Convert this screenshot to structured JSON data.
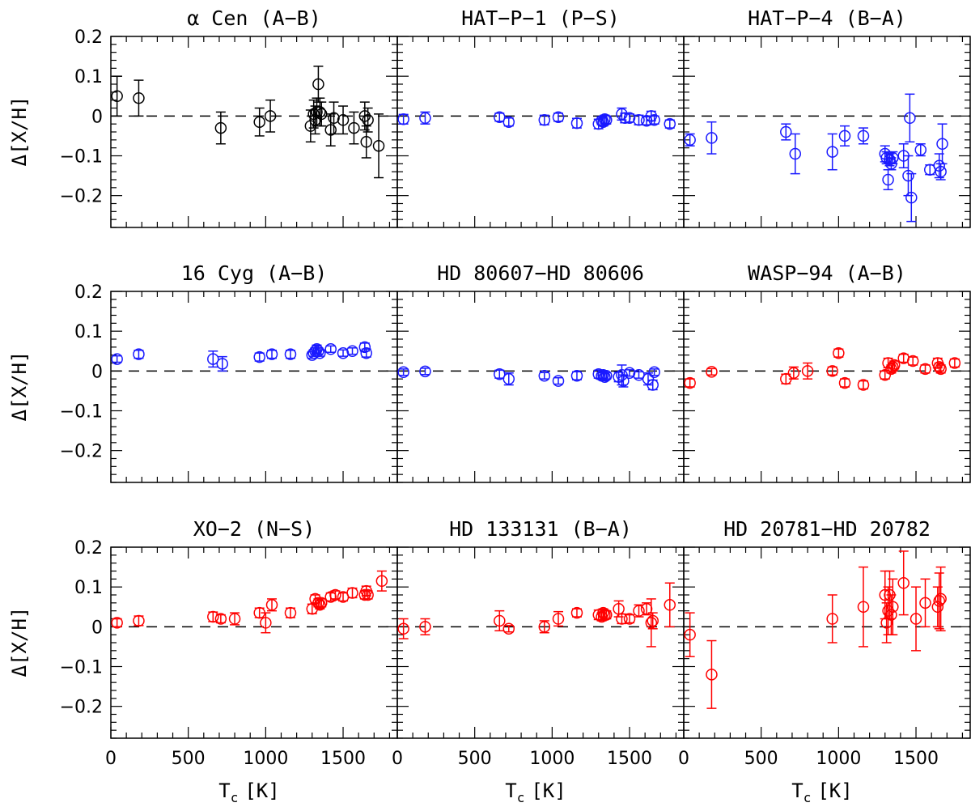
{
  "figure": {
    "ylabel": "Δ[X/H]",
    "xlabel": "T",
    "xlabel_sub": "c",
    "xlabel_unit": "[K]",
    "xlim": [
      0,
      1850
    ],
    "ylim": [
      -0.28,
      0.2
    ],
    "xticks": [
      0,
      500,
      1000,
      1500
    ],
    "xtick_labels": [
      "0",
      "500",
      "1000",
      "1500"
    ],
    "yticks": [
      -0.2,
      -0.1,
      0,
      0.1,
      0.2
    ],
    "ytick_labels": [
      "−0.2",
      "−0.1",
      "0",
      "0.1",
      "0.2"
    ],
    "reference_line_y": 0,
    "colors": {
      "black": "#000000",
      "blue": "#1a1aff",
      "red": "#ff0000"
    }
  },
  "chart_data": [
    {
      "type": "scatter",
      "title": "α Cen (A−B)",
      "color": "#000000",
      "x": [
        40,
        180,
        710,
        960,
        1030,
        1290,
        1310,
        1320,
        1330,
        1340,
        1350,
        1360,
        1420,
        1440,
        1500,
        1570,
        1640,
        1650,
        1660,
        1730
      ],
      "y": [
        0.05,
        0.045,
        -0.03,
        -0.015,
        0,
        -0.025,
        0.005,
        -0.01,
        0.01,
        0.08,
        0.01,
        0.005,
        -0.035,
        -0.005,
        -0.01,
        -0.03,
        0,
        -0.065,
        -0.01,
        -0.075
      ],
      "err": [
        0.05,
        0.045,
        0.04,
        0.035,
        0.04,
        0.04,
        0.035,
        0.035,
        0.035,
        0.045,
        0.035,
        0.03,
        0.04,
        0.04,
        0.035,
        0.04,
        0.035,
        0.04,
        0.03,
        0.08
      ]
    },
    {
      "type": "scatter",
      "title": "HAT−P−1 (P−S)",
      "color": "#1a1aff",
      "x": [
        40,
        180,
        660,
        720,
        950,
        1040,
        1160,
        1300,
        1320,
        1330,
        1340,
        1350,
        1450,
        1470,
        1500,
        1560,
        1610,
        1640,
        1660,
        1760
      ],
      "y": [
        -0.008,
        -0.005,
        -0.003,
        -0.015,
        -0.01,
        -0.003,
        -0.018,
        -0.02,
        -0.012,
        -0.015,
        -0.008,
        -0.01,
        0.005,
        -0.005,
        -0.005,
        -0.01,
        -0.012,
        0,
        -0.01,
        -0.02
      ],
      "err": [
        0.012,
        0.015,
        0.01,
        0.01,
        0.012,
        0.01,
        0.012,
        0.012,
        0.01,
        0.01,
        0.01,
        0.01,
        0.015,
        0.012,
        0.01,
        0.012,
        0.01,
        0.012,
        0.01,
        0.01
      ]
    },
    {
      "type": "scatter",
      "title": "HAT−P−4 (B−A)",
      "color": "#1a1aff",
      "x": [
        40,
        180,
        660,
        720,
        960,
        1040,
        1160,
        1300,
        1310,
        1320,
        1330,
        1340,
        1350,
        1420,
        1450,
        1460,
        1470,
        1530,
        1590,
        1650,
        1660,
        1670
      ],
      "y": [
        -0.06,
        -0.055,
        -0.04,
        -0.095,
        -0.09,
        -0.05,
        -0.05,
        -0.095,
        -0.105,
        -0.16,
        -0.11,
        -0.12,
        -0.105,
        -0.1,
        -0.15,
        -0.005,
        -0.205,
        -0.085,
        -0.135,
        -0.125,
        -0.14,
        -0.07
      ],
      "err": [
        0.015,
        0.04,
        0.02,
        0.05,
        0.045,
        0.025,
        0.02,
        0.02,
        0.015,
        0.025,
        0.015,
        0.015,
        0.015,
        0.03,
        0.05,
        0.06,
        0.06,
        0.015,
        0.012,
        0.03,
        0.02,
        0.05
      ]
    },
    {
      "type": "scatter",
      "title": "16 Cyg (A−B)",
      "color": "#1a1aff",
      "x": [
        40,
        180,
        660,
        720,
        960,
        1040,
        1160,
        1300,
        1310,
        1320,
        1330,
        1340,
        1350,
        1420,
        1500,
        1560,
        1640,
        1650
      ],
      "y": [
        0.03,
        0.042,
        0.03,
        0.018,
        0.035,
        0.042,
        0.042,
        0.04,
        0.045,
        0.05,
        0.055,
        0.05,
        0.045,
        0.055,
        0.045,
        0.05,
        0.06,
        0.045
      ],
      "err": [
        0.008,
        0.01,
        0.02,
        0.018,
        0.01,
        0.01,
        0.01,
        0.008,
        0.008,
        0.008,
        0.01,
        0.008,
        0.008,
        0.008,
        0.008,
        0.008,
        0.01,
        0.01
      ]
    },
    {
      "type": "scatter",
      "title": "HD 80607−HD 80606",
      "color": "#1a1aff",
      "x": [
        40,
        180,
        660,
        720,
        950,
        1040,
        1160,
        1300,
        1320,
        1330,
        1340,
        1350,
        1430,
        1450,
        1460,
        1500,
        1560,
        1620,
        1650,
        1660
      ],
      "y": [
        -0.003,
        -0.001,
        -0.008,
        -0.02,
        -0.012,
        -0.025,
        -0.012,
        -0.008,
        -0.012,
        -0.01,
        -0.015,
        -0.012,
        -0.015,
        -0.01,
        -0.025,
        -0.005,
        -0.01,
        -0.02,
        -0.035,
        -0.003
      ],
      "err": [
        0.008,
        0.008,
        0.01,
        0.015,
        0.008,
        0.008,
        0.01,
        0.01,
        0.008,
        0.008,
        0.008,
        0.008,
        0.012,
        0.025,
        0.015,
        0.008,
        0.008,
        0.015,
        0.012,
        0.008
      ]
    },
    {
      "type": "scatter",
      "title": "WASP−94 (A−B)",
      "color": "#ff0000",
      "x": [
        40,
        180,
        660,
        710,
        800,
        960,
        1000,
        1040,
        1160,
        1300,
        1320,
        1340,
        1350,
        1360,
        1420,
        1480,
        1560,
        1640,
        1650,
        1660,
        1750
      ],
      "y": [
        -0.03,
        -0.002,
        -0.02,
        -0.005,
        0,
        0,
        0.045,
        -0.03,
        -0.035,
        -0.01,
        0.02,
        0.005,
        0.01,
        0.015,
        0.032,
        0.025,
        0.005,
        0.02,
        0.01,
        0.005,
        0.02
      ],
      "err": [
        0.01,
        0.008,
        0.012,
        0.015,
        0.02,
        0.01,
        0.01,
        0.01,
        0.01,
        0.01,
        0.012,
        0.01,
        0.01,
        0.01,
        0.01,
        0.01,
        0.01,
        0.012,
        0.01,
        0.01,
        0.01
      ]
    },
    {
      "type": "scatter",
      "title": "XO−2 (N−S)",
      "color": "#ff0000",
      "x": [
        40,
        180,
        660,
        710,
        800,
        960,
        1000,
        1040,
        1160,
        1300,
        1320,
        1340,
        1350,
        1360,
        1420,
        1450,
        1500,
        1560,
        1640,
        1650,
        1660,
        1750
      ],
      "y": [
        0.01,
        0.015,
        0.025,
        0.02,
        0.02,
        0.035,
        0.01,
        0.055,
        0.035,
        0.045,
        0.07,
        0.06,
        0.055,
        0.06,
        0.075,
        0.08,
        0.075,
        0.085,
        0.08,
        0.09,
        0.08,
        0.115
      ],
      "err": [
        0.01,
        0.012,
        0.012,
        0.01,
        0.015,
        0.012,
        0.025,
        0.015,
        0.012,
        0.012,
        0.01,
        0.01,
        0.01,
        0.01,
        0.01,
        0.01,
        0.01,
        0.012,
        0.01,
        0.012,
        0.01,
        0.025
      ]
    },
    {
      "type": "scatter",
      "title": "HD 133131 (B−A)",
      "color": "#ff0000",
      "x": [
        40,
        180,
        660,
        720,
        950,
        1040,
        1160,
        1300,
        1320,
        1330,
        1340,
        1350,
        1430,
        1450,
        1500,
        1560,
        1610,
        1640,
        1650,
        1760
      ],
      "y": [
        -0.005,
        0,
        0.015,
        -0.005,
        0,
        0.02,
        0.035,
        0.03,
        0.025,
        0.035,
        0.03,
        0.03,
        0.045,
        0.02,
        0.02,
        0.04,
        0.045,
        0.01,
        0.015,
        0.055
      ],
      "err": [
        0.025,
        0.02,
        0.025,
        0.008,
        0.015,
        0.018,
        0.01,
        0.012,
        0.01,
        0.01,
        0.01,
        0.01,
        0.02,
        0.012,
        0.01,
        0.015,
        0.015,
        0.06,
        0.02,
        0.055
      ]
    },
    {
      "type": "scatter",
      "title": "HD 20781−HD 20782",
      "color": "#ff0000",
      "x": [
        40,
        180,
        960,
        1160,
        1300,
        1310,
        1320,
        1330,
        1340,
        1350,
        1420,
        1500,
        1560,
        1640,
        1650,
        1660
      ],
      "y": [
        -0.02,
        -0.12,
        0.02,
        0.05,
        0.08,
        0.01,
        0.04,
        0.08,
        0.03,
        0.05,
        0.11,
        0.02,
        0.06,
        0.05,
        0.065,
        0.07
      ],
      "err": [
        0.055,
        0.085,
        0.06,
        0.1,
        0.06,
        0.05,
        0.06,
        0.06,
        0.05,
        0.07,
        0.08,
        0.08,
        0.06,
        0.05,
        0.07,
        0.08
      ]
    }
  ]
}
